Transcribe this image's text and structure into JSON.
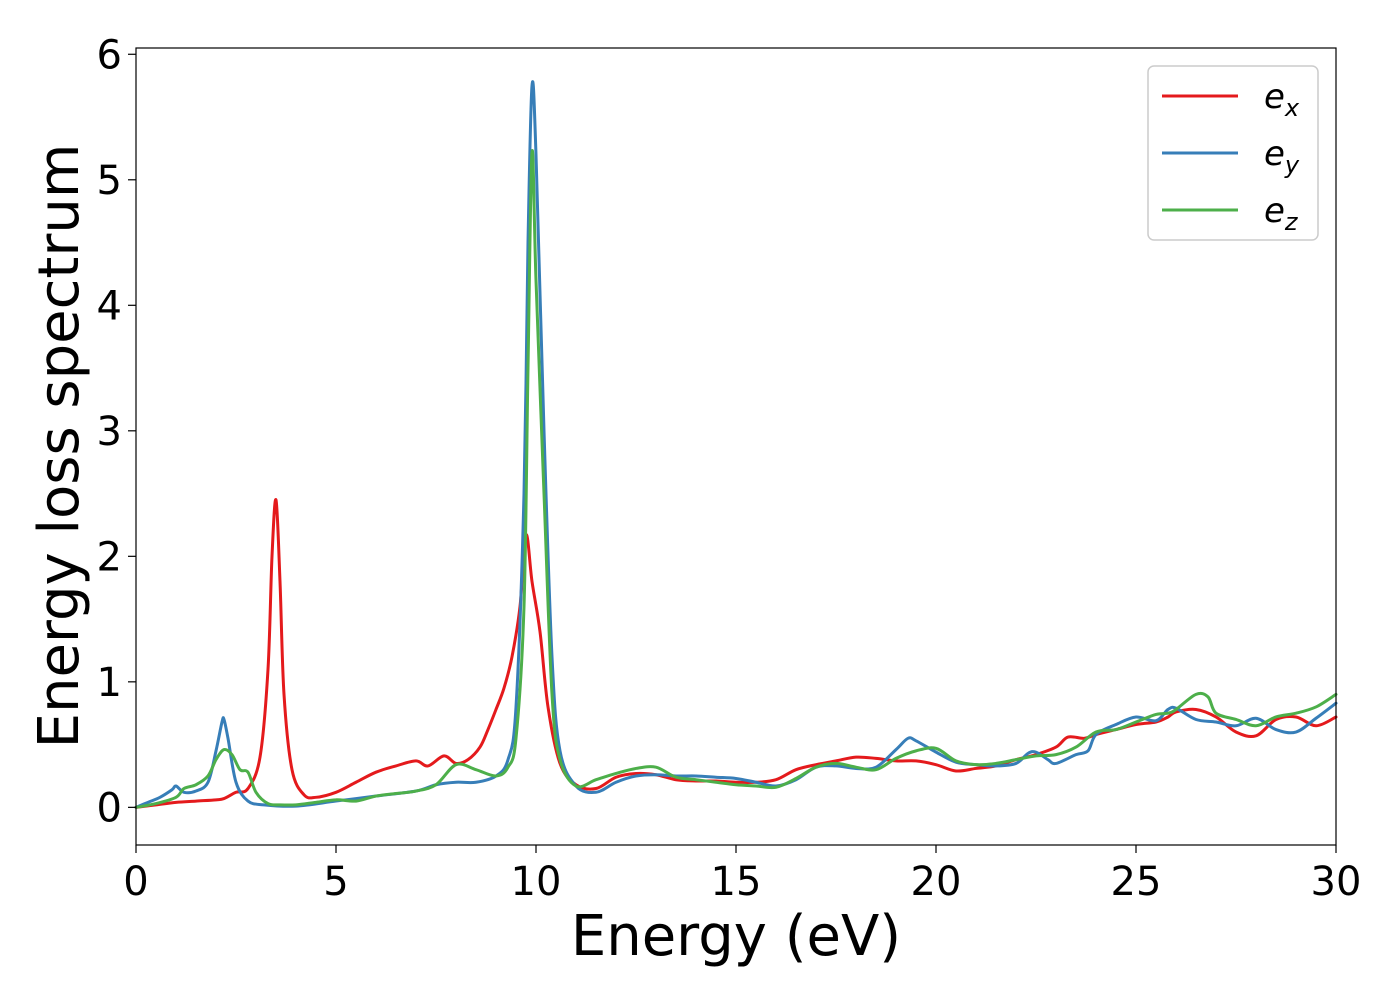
{
  "chart_data": {
    "type": "line",
    "xlabel": "Energy (eV)",
    "ylabel": "Energy loss spectrum",
    "xlim": [
      0,
      30
    ],
    "ylim": [
      -0.3,
      6.05
    ],
    "xticks": [
      0,
      5,
      10,
      15,
      20,
      25,
      30
    ],
    "yticks": [
      0,
      1,
      2,
      3,
      4,
      5,
      6
    ],
    "grid": false,
    "legend_position": "top-right",
    "series": [
      {
        "name": "e_x",
        "label_main": "e",
        "label_sub": "x",
        "color": "#e41a1c",
        "x": [
          0,
          0.5,
          1,
          1.5,
          2,
          2.2,
          2.5,
          2.8,
          3.1,
          3.3,
          3.4,
          3.5,
          3.6,
          3.7,
          3.9,
          4.2,
          4.5,
          5,
          5.5,
          6,
          6.5,
          7,
          7.3,
          7.7,
          8,
          8.3,
          8.6,
          8.8,
          9,
          9.2,
          9.4,
          9.6,
          9.75,
          9.9,
          10.1,
          10.3,
          10.6,
          11,
          11.5,
          12,
          12.5,
          13,
          13.5,
          14,
          14.5,
          15,
          15.5,
          16,
          16.5,
          17,
          17.5,
          18,
          18.5,
          19,
          19.5,
          20,
          20.5,
          21,
          21.5,
          22,
          22.5,
          23,
          23.3,
          23.7,
          24,
          24.5,
          25,
          25.5,
          25.8,
          26,
          26.5,
          27,
          27.5,
          28,
          28.5,
          29,
          29.5,
          30
        ],
        "y": [
          0,
          0.02,
          0.04,
          0.05,
          0.06,
          0.07,
          0.12,
          0.15,
          0.4,
          1.1,
          2.0,
          2.45,
          1.8,
          0.9,
          0.3,
          0.1,
          0.08,
          0.12,
          0.2,
          0.28,
          0.33,
          0.37,
          0.33,
          0.41,
          0.35,
          0.38,
          0.48,
          0.62,
          0.78,
          0.95,
          1.2,
          1.6,
          2.17,
          1.8,
          1.4,
          0.8,
          0.35,
          0.18,
          0.15,
          0.24,
          0.27,
          0.26,
          0.22,
          0.21,
          0.21,
          0.2,
          0.2,
          0.22,
          0.3,
          0.34,
          0.37,
          0.4,
          0.39,
          0.37,
          0.37,
          0.34,
          0.29,
          0.31,
          0.33,
          0.38,
          0.42,
          0.48,
          0.56,
          0.55,
          0.58,
          0.62,
          0.66,
          0.68,
          0.72,
          0.76,
          0.78,
          0.72,
          0.6,
          0.57,
          0.7,
          0.72,
          0.65,
          0.72
        ]
      },
      {
        "name": "e_y",
        "label_main": "e",
        "label_sub": "y",
        "color": "#377eb8",
        "x": [
          0,
          0.3,
          0.6,
          0.9,
          1.0,
          1.2,
          1.5,
          1.8,
          2.0,
          2.15,
          2.2,
          2.3,
          2.5,
          2.8,
          3.2,
          4,
          5,
          6,
          7,
          7.5,
          8,
          8.5,
          9,
          9.3,
          9.5,
          9.7,
          9.8,
          9.9,
          10.0,
          10.2,
          10.4,
          10.6,
          11,
          11.5,
          12,
          12.5,
          13,
          13.5,
          14,
          14.5,
          15,
          15.5,
          16,
          16.5,
          17,
          17.5,
          18,
          18.5,
          19,
          19.3,
          19.5,
          20,
          20.5,
          21,
          21.5,
          22,
          22.3,
          22.5,
          22.8,
          23,
          23.5,
          23.8,
          24,
          24.5,
          25,
          25.5,
          25.8,
          26,
          26.5,
          27,
          27.5,
          28,
          28.5,
          29,
          29.5,
          30
        ],
        "y": [
          0,
          0.04,
          0.08,
          0.14,
          0.17,
          0.12,
          0.13,
          0.2,
          0.45,
          0.68,
          0.7,
          0.55,
          0.2,
          0.05,
          0.02,
          0.01,
          0.05,
          0.09,
          0.13,
          0.18,
          0.2,
          0.2,
          0.25,
          0.38,
          0.8,
          2.5,
          4.5,
          5.75,
          5.2,
          3.0,
          1.2,
          0.45,
          0.17,
          0.12,
          0.2,
          0.25,
          0.26,
          0.25,
          0.25,
          0.24,
          0.23,
          0.2,
          0.17,
          0.22,
          0.32,
          0.33,
          0.31,
          0.32,
          0.46,
          0.55,
          0.53,
          0.44,
          0.36,
          0.34,
          0.33,
          0.35,
          0.43,
          0.44,
          0.38,
          0.35,
          0.42,
          0.45,
          0.58,
          0.66,
          0.72,
          0.69,
          0.78,
          0.79,
          0.7,
          0.68,
          0.65,
          0.71,
          0.62,
          0.6,
          0.71,
          0.83
        ]
      },
      {
        "name": "e_z",
        "label_main": "e",
        "label_sub": "z",
        "color": "#4daf4a",
        "x": [
          0,
          0.5,
          1,
          1.2,
          1.5,
          1.8,
          2.0,
          2.2,
          2.4,
          2.6,
          2.8,
          3.0,
          3.3,
          3.6,
          4,
          4.5,
          5,
          5.5,
          6,
          6.5,
          7,
          7.5,
          8,
          8.5,
          9,
          9.3,
          9.5,
          9.7,
          9.8,
          9.9,
          10.0,
          10.2,
          10.4,
          10.6,
          11,
          11.5,
          12,
          12.5,
          13,
          13.5,
          14,
          14.5,
          15,
          15.5,
          16,
          16.5,
          17,
          17.5,
          18,
          18.5,
          19,
          19.5,
          20,
          20.5,
          21,
          21.5,
          22,
          22.5,
          23,
          23.5,
          24,
          24.5,
          25,
          25.5,
          25.8,
          26,
          26.5,
          26.8,
          27,
          27.5,
          28,
          28.5,
          29,
          29.5,
          30
        ],
        "y": [
          0,
          0.03,
          0.08,
          0.15,
          0.18,
          0.25,
          0.38,
          0.46,
          0.42,
          0.3,
          0.28,
          0.12,
          0.03,
          0.02,
          0.02,
          0.04,
          0.06,
          0.05,
          0.09,
          0.11,
          0.13,
          0.18,
          0.34,
          0.3,
          0.25,
          0.32,
          0.55,
          1.6,
          3.5,
          5.22,
          4.2,
          2.5,
          0.9,
          0.38,
          0.17,
          0.22,
          0.27,
          0.31,
          0.32,
          0.24,
          0.22,
          0.2,
          0.18,
          0.17,
          0.16,
          0.23,
          0.32,
          0.35,
          0.32,
          0.3,
          0.39,
          0.45,
          0.47,
          0.37,
          0.34,
          0.35,
          0.38,
          0.41,
          0.42,
          0.48,
          0.6,
          0.62,
          0.68,
          0.74,
          0.75,
          0.78,
          0.9,
          0.88,
          0.75,
          0.7,
          0.65,
          0.72,
          0.75,
          0.8,
          0.9
        ]
      }
    ]
  }
}
